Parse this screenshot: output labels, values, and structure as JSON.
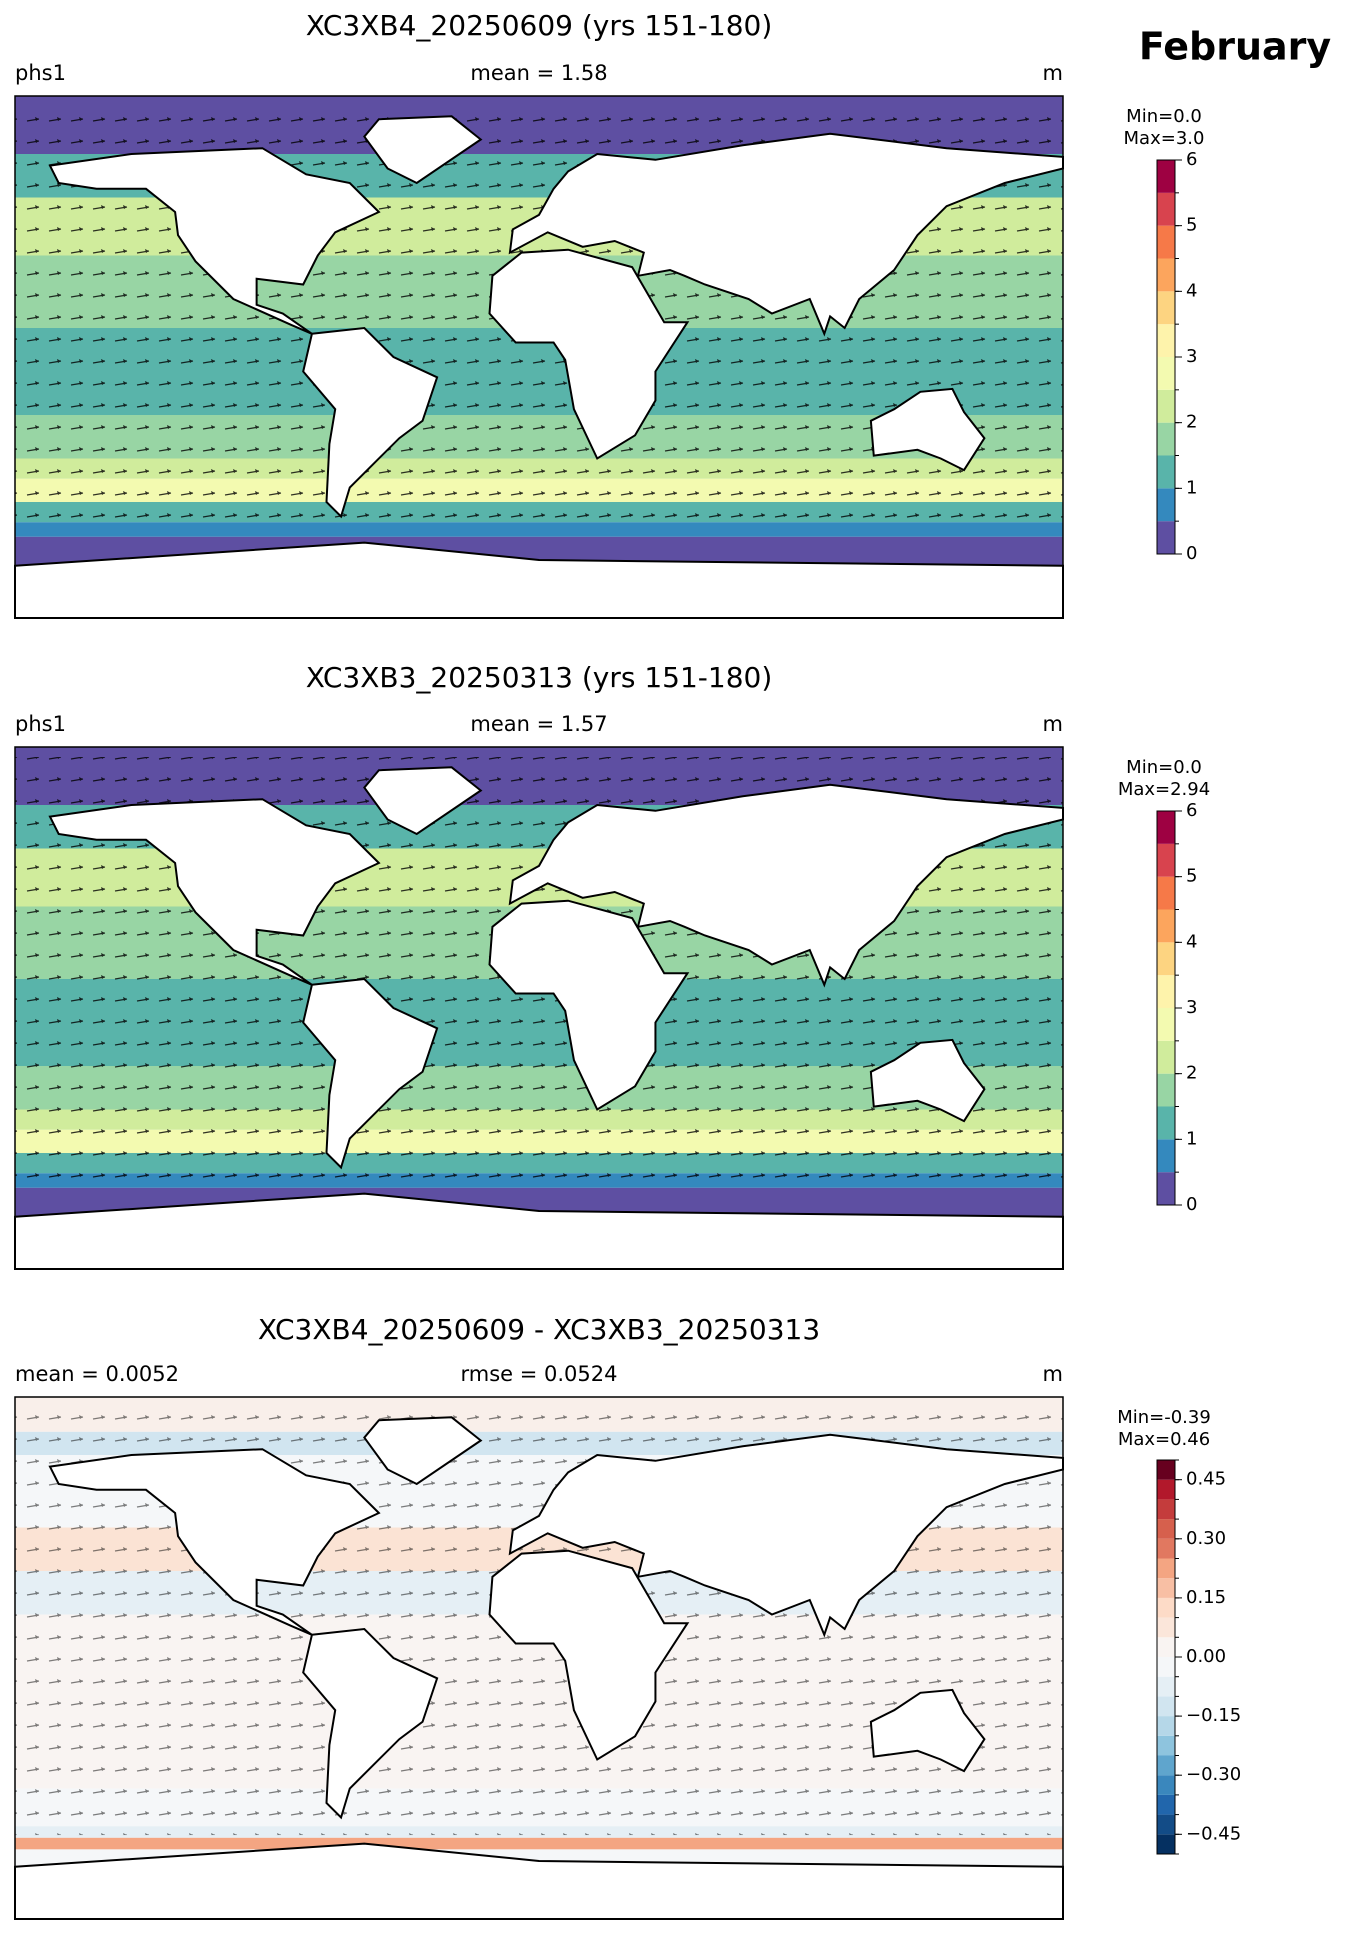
{
  "suptitle": "February",
  "panels": [
    {
      "title": "XC3XB4_20250609 (yrs 151-180)",
      "left_label": "phs1",
      "center_label": "mean = 1.58",
      "right_label": "m",
      "stats": [
        "Min=0.0",
        "Max=3.0"
      ],
      "colorbar": {
        "levels": [
          0,
          0.5,
          1,
          1.5,
          2,
          2.5,
          3,
          3.5,
          4,
          4.5,
          5,
          5.5,
          6
        ],
        "colors": [
          "#5e4fa2",
          "#3489be",
          "#59b4aa",
          "#98d5a4",
          "#d0ec9c",
          "#f3fab0",
          "#fef3ab",
          "#fdd481",
          "#fca55d",
          "#f67948",
          "#d8434e",
          "#9e0142"
        ],
        "ticks": [
          0,
          1,
          2,
          3,
          4,
          5,
          6
        ]
      }
    },
    {
      "title": "XC3XB3_20250313 (yrs 151-180)",
      "left_label": "phs1",
      "center_label": "mean = 1.57",
      "right_label": "m",
      "stats": [
        "Min=0.0",
        "Max=2.94"
      ],
      "colorbar": {
        "levels": [
          0,
          0.5,
          1,
          1.5,
          2,
          2.5,
          3,
          3.5,
          4,
          4.5,
          5,
          5.5,
          6
        ],
        "colors": [
          "#5e4fa2",
          "#3489be",
          "#59b4aa",
          "#98d5a4",
          "#d0ec9c",
          "#f3fab0",
          "#fef3ab",
          "#fdd481",
          "#fca55d",
          "#f67948",
          "#d8434e",
          "#9e0142"
        ],
        "ticks": [
          0,
          1,
          2,
          3,
          4,
          5,
          6
        ]
      }
    },
    {
      "title": "XC3XB4_20250609 - XC3XB3_20250313",
      "left_label": "mean = 0.0052",
      "center_label": "rmse = 0.0524",
      "right_label": "m",
      "stats": [
        "Min=-0.39",
        "Max=0.46"
      ],
      "colorbar": {
        "levels": [
          -0.5,
          -0.45,
          -0.4,
          -0.35,
          -0.3,
          -0.25,
          -0.2,
          -0.15,
          -0.1,
          -0.05,
          0,
          0.05,
          0.1,
          0.15,
          0.2,
          0.25,
          0.3,
          0.35,
          0.4,
          0.45,
          0.5
        ],
        "colors": [
          "#053061",
          "#134c87",
          "#2166ac",
          "#3a87bd",
          "#5fa5cd",
          "#8ec4de",
          "#b5d7e8",
          "#d1e5f0",
          "#e5eff5",
          "#f5f7f9",
          "#f9f4f2",
          "#fbe6da",
          "#fddbc7",
          "#f8bfa4",
          "#f4a582",
          "#e17860",
          "#d6604d",
          "#c43c3c",
          "#b2182b",
          "#67001f"
        ],
        "ticks": [
          {
            "value": -0.45,
            "label": "−0.45"
          },
          {
            "value": -0.3,
            "label": "−0.30"
          },
          {
            "value": -0.15,
            "label": "−0.15"
          },
          {
            "value": 0,
            "label": "0.00"
          },
          0.15,
          {
            "value": 0.3,
            "label": "0.30"
          },
          0.45
        ]
      }
    }
  ]
}
